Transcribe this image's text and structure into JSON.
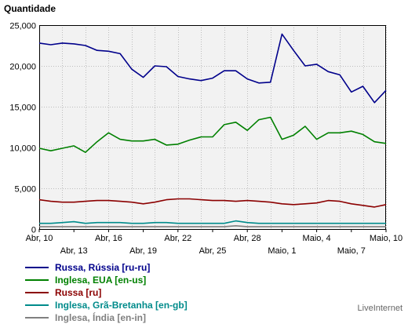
{
  "chart_data": {
    "type": "line",
    "title": "Quantidade",
    "xlabel": "",
    "ylabel": "",
    "ylim": [
      0,
      25000
    ],
    "yticks": [
      0,
      5000,
      10000,
      15000,
      20000,
      25000
    ],
    "ytick_labels": [
      "0",
      "5,000",
      "10,000",
      "15,000",
      "20,000",
      "25,000"
    ],
    "x": [
      "Abr, 10",
      "Abr, 11",
      "Abr, 12",
      "Abr, 13",
      "Abr, 14",
      "Abr, 15",
      "Abr, 16",
      "Abr, 17",
      "Abr, 18",
      "Abr, 19",
      "Abr, 20",
      "Abr, 21",
      "Abr, 22",
      "Abr, 23",
      "Abr, 24",
      "Abr, 25",
      "Abr, 26",
      "Abr, 27",
      "Abr, 28",
      "Abr, 29",
      "Abr, 30",
      "Maio, 1",
      "Maio, 2",
      "Maio, 3",
      "Maio, 4",
      "Maio, 5",
      "Maio, 6",
      "Maio, 7",
      "Maio, 8",
      "Maio, 9",
      "Maio, 10"
    ],
    "xtick_labels": [
      {
        "index": 0,
        "label": "Abr, 10",
        "row": 1
      },
      {
        "index": 3,
        "label": "Abr, 13",
        "row": 2
      },
      {
        "index": 6,
        "label": "Abr, 16",
        "row": 1
      },
      {
        "index": 9,
        "label": "Abr, 19",
        "row": 2
      },
      {
        "index": 12,
        "label": "Abr, 22",
        "row": 1
      },
      {
        "index": 15,
        "label": "Abr, 25",
        "row": 2
      },
      {
        "index": 18,
        "label": "Abr, 28",
        "row": 1
      },
      {
        "index": 21,
        "label": "Maio, 1",
        "row": 2
      },
      {
        "index": 24,
        "label": "Maio, 4",
        "row": 1
      },
      {
        "index": 27,
        "label": "Maio, 7",
        "row": 2
      },
      {
        "index": 30,
        "label": "Maio, 10",
        "row": 1
      }
    ],
    "grid": true,
    "legend_position": "bottom-left",
    "series": [
      {
        "name": "Russa, Rússia [ru-ru]",
        "color": "#00008b",
        "values": [
          22800,
          22600,
          22800,
          22700,
          22500,
          21900,
          21800,
          21500,
          19600,
          18600,
          20000,
          19900,
          18700,
          18400,
          18200,
          18500,
          19400,
          19400,
          18400,
          17900,
          18000,
          23900,
          21900,
          20000,
          20200,
          19300,
          18900,
          16800,
          17500,
          15500,
          17000
        ]
      },
      {
        "name": "Inglesa, EUA [en-us]",
        "color": "#008000",
        "values": [
          9900,
          9600,
          9900,
          10200,
          9400,
          10700,
          11800,
          11000,
          10800,
          10800,
          11000,
          10300,
          10400,
          10900,
          11300,
          11300,
          12800,
          13100,
          12100,
          13400,
          13700,
          11000,
          11500,
          12600,
          11000,
          11800,
          11800,
          12000,
          11600,
          10700,
          10500
        ]
      },
      {
        "name": "Russa [ru]",
        "color": "#8b0000",
        "values": [
          3600,
          3400,
          3300,
          3300,
          3400,
          3500,
          3500,
          3400,
          3300,
          3100,
          3300,
          3600,
          3700,
          3700,
          3600,
          3500,
          3500,
          3400,
          3500,
          3400,
          3300,
          3100,
          3000,
          3100,
          3200,
          3500,
          3400,
          3100,
          2900,
          2700,
          3000
        ]
      },
      {
        "name": "Inglesa, Grã-Bretanha [en-gb]",
        "color": "#008b8b",
        "values": [
          700,
          700,
          800,
          900,
          700,
          800,
          800,
          800,
          700,
          700,
          800,
          800,
          700,
          700,
          700,
          700,
          700,
          1000,
          800,
          700,
          700,
          700,
          700,
          700,
          700,
          700,
          700,
          700,
          700,
          700,
          700
        ]
      },
      {
        "name": "Inglesa, Índia [en-in]",
        "color": "#808080",
        "values": [
          300,
          300,
          300,
          300,
          300,
          300,
          300,
          300,
          300,
          300,
          300,
          300,
          300,
          300,
          300,
          300,
          300,
          400,
          300,
          300,
          300,
          300,
          300,
          300,
          300,
          300,
          300,
          300,
          300,
          300,
          300
        ]
      }
    ]
  },
  "brand": "LiveInternet"
}
